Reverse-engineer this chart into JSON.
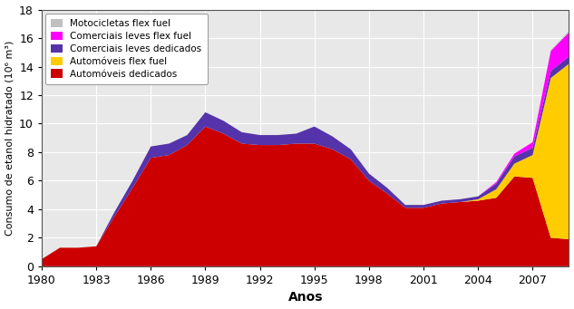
{
  "years": [
    1980,
    1981,
    1982,
    1983,
    1984,
    1985,
    1986,
    1987,
    1988,
    1989,
    1990,
    1991,
    1992,
    1993,
    1994,
    1995,
    1996,
    1997,
    1998,
    1999,
    2000,
    2001,
    2002,
    2003,
    2004,
    2005,
    2006,
    2007,
    2008,
    2009
  ],
  "automoveis_dedicados": [
    0.5,
    1.3,
    1.3,
    1.4,
    3.5,
    5.5,
    7.6,
    7.8,
    8.5,
    9.8,
    9.3,
    8.6,
    8.5,
    8.5,
    8.6,
    8.6,
    8.2,
    7.5,
    6.0,
    5.1,
    4.1,
    4.1,
    4.4,
    4.5,
    4.6,
    4.8,
    6.3,
    6.2,
    2.0,
    1.9
  ],
  "automoveis_flex": [
    0.0,
    0.0,
    0.0,
    0.0,
    0.0,
    0.0,
    0.0,
    0.0,
    0.0,
    0.0,
    0.0,
    0.0,
    0.0,
    0.0,
    0.0,
    0.0,
    0.0,
    0.0,
    0.0,
    0.0,
    0.0,
    0.0,
    0.0,
    0.0,
    0.1,
    0.6,
    0.9,
    1.6,
    11.2,
    12.3
  ],
  "comerciais_dedicados": [
    0.0,
    0.0,
    0.0,
    0.0,
    0.3,
    0.5,
    0.8,
    0.8,
    0.7,
    1.0,
    0.9,
    0.8,
    0.7,
    0.7,
    0.7,
    1.2,
    0.9,
    0.7,
    0.5,
    0.4,
    0.2,
    0.2,
    0.2,
    0.2,
    0.2,
    0.4,
    0.5,
    0.5,
    0.5,
    0.5
  ],
  "comerciais_flex": [
    0.0,
    0.0,
    0.0,
    0.0,
    0.0,
    0.0,
    0.0,
    0.0,
    0.0,
    0.0,
    0.0,
    0.0,
    0.0,
    0.0,
    0.0,
    0.0,
    0.0,
    0.0,
    0.0,
    0.0,
    0.0,
    0.0,
    0.0,
    0.0,
    0.0,
    0.1,
    0.2,
    0.4,
    1.4,
    1.7
  ],
  "motocicletas_flex": [
    0.0,
    0.0,
    0.0,
    0.0,
    0.0,
    0.0,
    0.0,
    0.0,
    0.0,
    0.0,
    0.0,
    0.0,
    0.0,
    0.0,
    0.0,
    0.0,
    0.0,
    0.0,
    0.0,
    0.0,
    0.0,
    0.0,
    0.0,
    0.0,
    0.0,
    0.0,
    0.0,
    0.0,
    0.05,
    0.1
  ],
  "color_automoveis_dedicados": "#cc0000",
  "color_automoveis_flex": "#ffcc00",
  "color_comerciais_dedicados": "#5533aa",
  "color_comerciais_flex": "#ff00ff",
  "color_motocicletas_flex": "#c0c0c0",
  "label_automoveis_dedicados": "Automóveis dedicados",
  "label_automoveis_flex": "Automóveis flex fuel",
  "label_comerciais_dedicados": "Comerciais leves dedicados",
  "label_comerciais_flex": "Comerciais leves flex fuel",
  "label_motocicletas_flex": "Motocicletas flex fuel",
  "xlabel": "Anos",
  "ylabel": "Consumo de etanol hidratado (10⁶ m³)",
  "ylim": [
    0,
    18
  ],
  "xlim": [
    1980,
    2009
  ],
  "yticks": [
    0,
    2,
    4,
    6,
    8,
    10,
    12,
    14,
    16,
    18
  ],
  "xticks": [
    1980,
    1983,
    1986,
    1989,
    1992,
    1995,
    1998,
    2001,
    2004,
    2007
  ],
  "background_color": "#e8e8e8",
  "grid_color": "#ffffff"
}
